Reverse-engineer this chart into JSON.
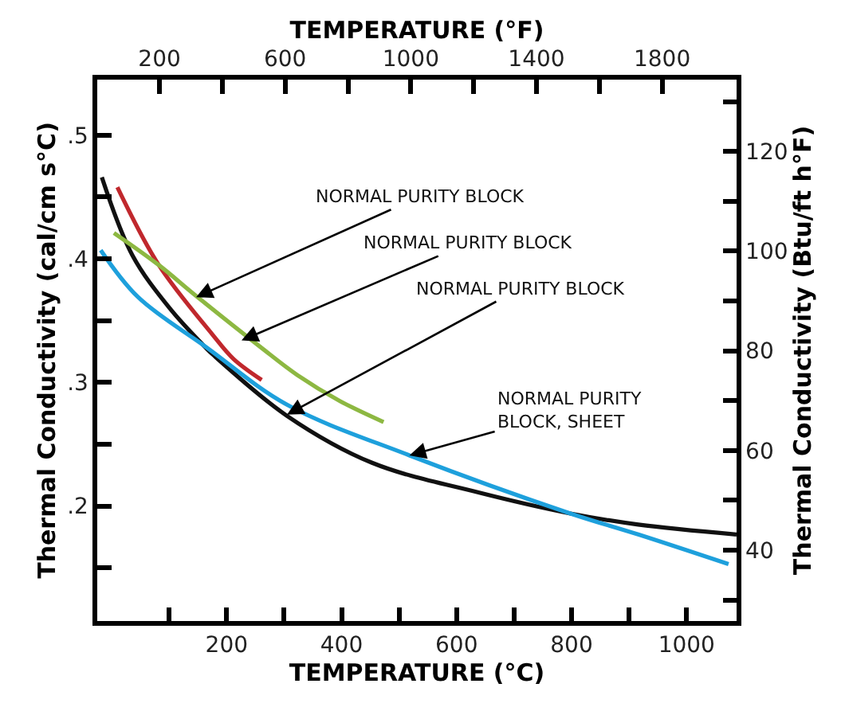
{
  "chart_data": {
    "type": "line",
    "xlabel": "TEMPERATURE (°C)",
    "x2label": "TEMPERATURE (°F)",
    "ylabel": "Thermal Conductivity (cal/cm s°C)",
    "y2label": "Thermal Conductivity (Btu/ft h°F)",
    "xlim": [
      -25,
      1087
    ],
    "xticks": [
      {
        "value": 100,
        "label": null
      },
      200,
      {
        "value": 300,
        "label": null
      },
      400,
      {
        "value": 500,
        "label": null
      },
      600,
      {
        "value": 700,
        "label": null
      },
      800,
      {
        "value": 900,
        "label": null
      },
      1000
    ],
    "x2lim": [
      2,
      2037
    ],
    "x2ticks": [
      200,
      {
        "value": 400,
        "label": null
      },
      600,
      {
        "value": 800,
        "label": null
      },
      1000,
      {
        "value": 1200,
        "label": null
      },
      1400,
      {
        "value": 1600,
        "label": null
      },
      1800
    ],
    "ylim": [
      0.107,
      0.545
    ],
    "yticks": [
      {
        "value": 0.15,
        "label": null
      },
      {
        "value": 0.2,
        "label": ".2"
      },
      {
        "value": 0.25,
        "label": null
      },
      {
        "value": 0.3,
        "label": ".3"
      },
      {
        "value": 0.35,
        "label": null
      },
      {
        "value": 0.4,
        "label": ".4"
      },
      {
        "value": 0.45,
        "label": null
      },
      {
        "value": 0.5,
        "label": ".5"
      }
    ],
    "y2lim": [
      25.8,
      134.4
    ],
    "y2ticks": [
      {
        "value": 30,
        "label": null
      },
      40,
      {
        "value": 50,
        "label": null
      },
      60,
      {
        "value": 70,
        "label": null
      },
      80,
      {
        "value": 90,
        "label": null
      },
      100,
      {
        "value": 110,
        "label": null
      },
      120,
      {
        "value": 130,
        "label": null
      }
    ],
    "series": [
      {
        "color": "#111111",
        "x": [
          -17,
          36,
          101,
          166,
          175,
          305,
          453,
          638,
          798,
          916,
          1087
        ],
        "values": [
          0.466,
          0.403,
          0.36,
          0.327,
          0.323,
          0.273,
          0.235,
          0.211,
          0.194,
          0.185,
          0.177
        ]
      },
      {
        "color": "#c0282d",
        "x": [
          10,
          82,
          175,
          212,
          261
        ],
        "values": [
          0.458,
          0.395,
          0.339,
          0.319,
          0.302
        ]
      },
      {
        "color": "#8db842",
        "x": [
          4,
          82,
          147,
          258,
          323,
          397,
          473
        ],
        "values": [
          0.421,
          0.395,
          0.37,
          0.329,
          0.306,
          0.285,
          0.268
        ]
      },
      {
        "color": "#1ea0dc",
        "x": [
          -19,
          46,
          166,
          305,
          518,
          798,
          916,
          1073
        ],
        "values": [
          0.407,
          0.369,
          0.328,
          0.282,
          0.241,
          0.194,
          0.177,
          0.153
        ]
      }
    ],
    "annotations": [
      {
        "text": "NORMAL PURITY BLOCK",
        "x": 147,
        "y": 0.369
      },
      {
        "text": "NORMAL PURITY BLOCK",
        "x": 226,
        "y": 0.334
      },
      {
        "text": "NORMAL PURITY BLOCK",
        "x": 305,
        "y": 0.274
      },
      {
        "text": "NORMAL PURITY\nBLOCK, SHEET",
        "x": 518,
        "y": 0.241
      }
    ]
  }
}
